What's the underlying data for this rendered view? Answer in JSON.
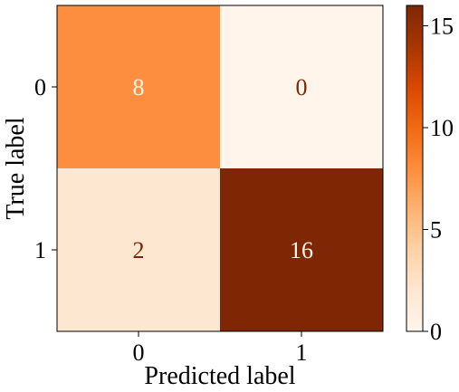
{
  "chart_data": {
    "type": "heatmap",
    "title": "",
    "xlabel": "Predicted label",
    "ylabel": "True label",
    "x_categories": [
      "0",
      "1"
    ],
    "y_categories": [
      "0",
      "1"
    ],
    "values": [
      [
        8,
        0
      ],
      [
        2,
        16
      ]
    ],
    "colorbar": {
      "min": 0,
      "max": 16,
      "ticks": [
        0,
        5,
        10,
        15
      ],
      "colormap": "Oranges"
    },
    "grid": false,
    "colors": {
      "cell_0_0": "#fd8e3f",
      "cell_0_1": "#fff5eb",
      "cell_1_0": "#fee7d1",
      "cell_1_1": "#7f2704",
      "text_light": "#fff5eb",
      "text_dark": "#7f2704",
      "axis": "#000000"
    }
  }
}
